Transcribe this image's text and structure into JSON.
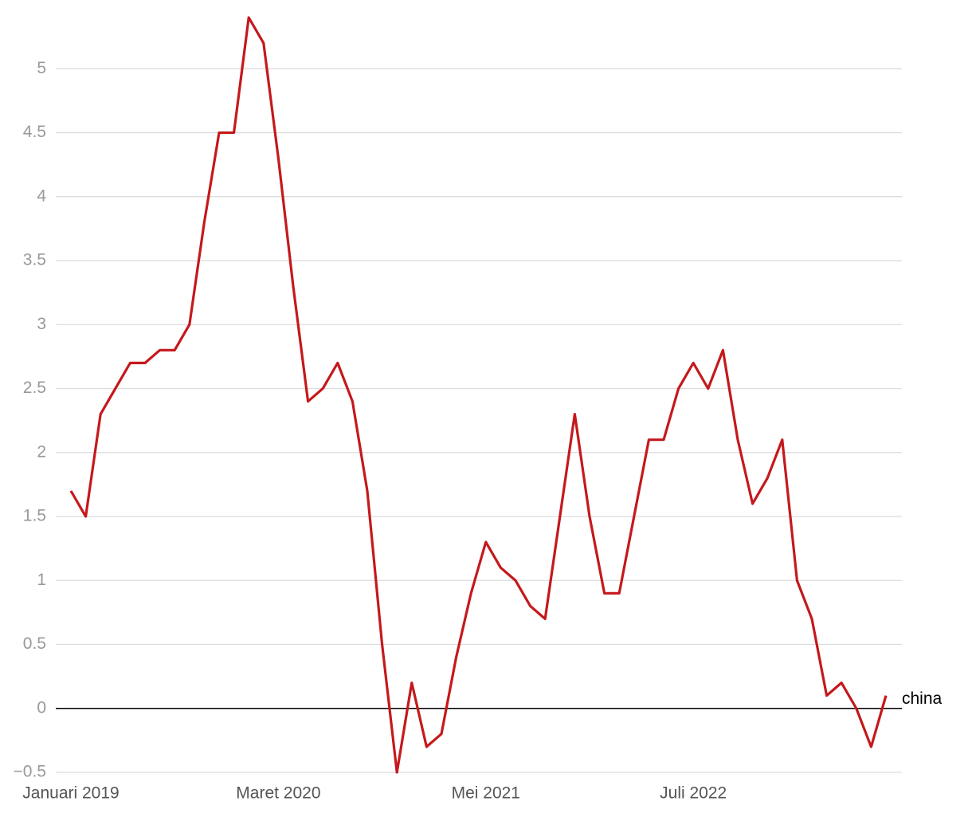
{
  "chart_data": {
    "type": "line",
    "categories": [
      "Januari 2019",
      null,
      null,
      null,
      null,
      null,
      null,
      null,
      null,
      null,
      null,
      null,
      null,
      null,
      "Maret 2020",
      null,
      null,
      null,
      null,
      null,
      null,
      null,
      null,
      null,
      null,
      null,
      null,
      null,
      "Mei 2021",
      null,
      null,
      null,
      null,
      null,
      null,
      null,
      null,
      null,
      null,
      null,
      null,
      null,
      "Juli 2022",
      null,
      null,
      null,
      null,
      null,
      null,
      null,
      null,
      null,
      null,
      null,
      null,
      null
    ],
    "series": [
      {
        "name": "china",
        "color": "#c4191c",
        "values": [
          1.7,
          1.5,
          2.3,
          2.5,
          2.7,
          2.7,
          2.8,
          2.8,
          3.0,
          3.8,
          4.5,
          4.5,
          5.4,
          5.2,
          4.3,
          3.3,
          2.4,
          2.5,
          2.7,
          2.4,
          1.7,
          0.5,
          -0.5,
          0.2,
          -0.3,
          -0.2,
          0.4,
          0.9,
          1.3,
          1.1,
          1.0,
          0.8,
          0.7,
          1.5,
          2.3,
          1.5,
          0.9,
          0.9,
          1.5,
          2.1,
          2.1,
          2.5,
          2.7,
          2.5,
          2.8,
          2.1,
          1.6,
          1.8,
          2.1,
          1.0,
          0.7,
          0.1,
          0.2,
          0.0,
          -0.3,
          0.1
        ]
      }
    ],
    "ylim": [
      -0.5,
      5.4
    ],
    "yticks": [
      {
        "value": -0.5,
        "label": "−0.5"
      },
      0,
      0.5,
      1,
      1.5,
      2,
      2.5,
      3,
      3.5,
      4,
      4.5,
      5
    ],
    "grid": true
  }
}
